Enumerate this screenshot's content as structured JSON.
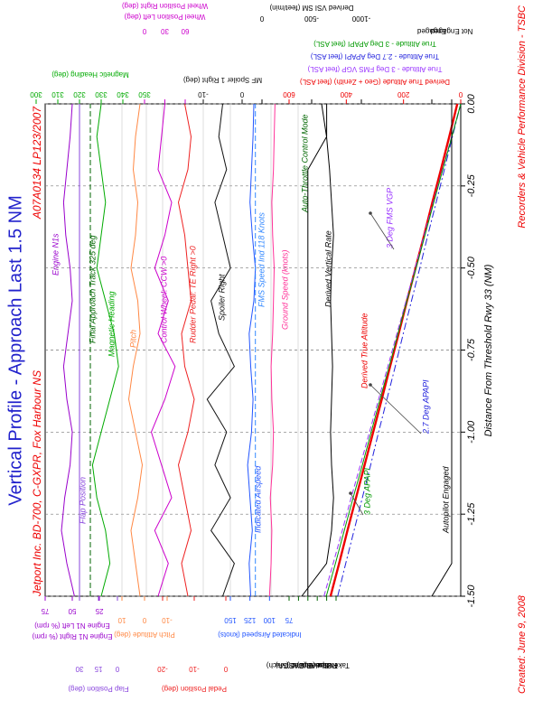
{
  "chart_data": {
    "type": "line",
    "title": "Vertical Profile - Approach Last 1.5 NM",
    "subtitle": "Jetport Inc. BD-700, C-GXPR, Fox Harbour NS",
    "report_id": "A07A0134  LP123/2007",
    "x_label": "Distance From Threshold Rwy 33 (NM)",
    "footer_left": "Created:  June 9, 2008",
    "footer_right": "Recorders & Vehicle Performance Division - TSBC",
    "xlim": [
      -1.5,
      0
    ],
    "xticks": [
      {
        "value": -1.5,
        "label": "-1.50"
      },
      {
        "value": -1.25,
        "label": "-1.25"
      },
      {
        "value": -1,
        "label": "-1.00"
      },
      {
        "value": -0.75,
        "label": "-0.75"
      },
      {
        "value": -0.5,
        "label": "-0.50"
      },
      {
        "value": -0.25,
        "label": "-0.25"
      },
      {
        "value": 0,
        "label": "0.00"
      }
    ],
    "grid": true,
    "x": [
      -1.5,
      -1.4,
      -1.3,
      -1.2,
      -1.1,
      -1.0,
      -0.9,
      -0.8,
      -0.7,
      -0.6,
      -0.5,
      -0.4,
      -0.3,
      -0.2,
      -0.1,
      0
    ],
    "series": [
      {
        "name": "Engine N1s",
        "color": "#9900cc",
        "side": "left",
        "ylim": [
          25,
          75
        ],
        "yticks": [
          25,
          50,
          75
        ],
        "axis_labels": [
          "Engine N1 Left (% rpm)",
          "Engine N1 Right (% rpm)"
        ],
        "values": [
          48,
          55,
          60,
          57,
          52,
          50,
          55,
          58,
          54,
          50,
          52,
          56,
          58,
          55,
          52,
          50
        ]
      },
      {
        "name": "Flap Position",
        "color": "#8844dd",
        "side": "left",
        "ylim": [
          0,
          30
        ],
        "yticks": [
          0,
          15,
          30
        ],
        "axis_labels": [
          "Flap Position (deg)"
        ],
        "values": [
          30,
          30,
          30,
          30,
          30,
          30,
          30,
          30,
          30,
          30,
          30,
          30,
          30,
          30,
          30,
          30
        ]
      },
      {
        "name": "Final Approach Track 325 deg",
        "color": "#006600",
        "dash": true,
        "ylim": [
          350,
          300
        ],
        "values": [
          325,
          325,
          325,
          325,
          325,
          325,
          325,
          325,
          325,
          325,
          325,
          325,
          325,
          325,
          325,
          325
        ]
      },
      {
        "name": "Magnetic Heading",
        "color": "#00aa00",
        "side": "right",
        "ylim": [
          350,
          300
        ],
        "yticks": [
          300,
          310,
          320,
          330,
          340,
          350
        ],
        "axis_labels": [
          "Magnetic Heading (deg)"
        ],
        "values": [
          330,
          334,
          332,
          328,
          326,
          330,
          334,
          338,
          336,
          332,
          328,
          330,
          332,
          330,
          328,
          330
        ]
      },
      {
        "name": "Pitch",
        "color": "#ff8844",
        "side": "left",
        "ylim": [
          -10,
          10
        ],
        "yticks": [
          -10,
          0,
          10
        ],
        "axis_labels": [
          "Pitch Attitude (deg)"
        ],
        "values": [
          2,
          4,
          6,
          3,
          1,
          4,
          7,
          5,
          2,
          3,
          6,
          4,
          3,
          5,
          4,
          2
        ]
      },
      {
        "name": "Control Wheel: CCW >0",
        "color": "#cc00cc",
        "side": "right",
        "ylim": [
          60,
          0
        ],
        "yticks": [
          0,
          30,
          60
        ],
        "axis_labels": [
          "Wheel Position Left (deg)",
          "Wheel Position Right (deg)"
        ],
        "values": [
          20,
          35,
          15,
          40,
          25,
          10,
          30,
          45,
          20,
          35,
          15,
          30,
          40,
          20,
          25,
          30
        ]
      },
      {
        "name": "Rudder Pedal: TE Right >0",
        "color": "#ee2222",
        "side": "left",
        "ylim": [
          0,
          -20
        ],
        "yticks": [
          -20,
          -10,
          0
        ],
        "axis_labels": [
          "Pedal Position (deg)"
        ],
        "values": [
          -12,
          -14,
          -11,
          -13,
          -15,
          -12,
          -10,
          -13,
          -14,
          -11,
          -12,
          -13,
          -15,
          -12,
          -11,
          -13
        ]
      },
      {
        "name": "Spoiler Right",
        "color": "#111111",
        "side": "right",
        "ylim": [
          0,
          -10
        ],
        "yticks": [
          -10,
          0
        ],
        "axis_labels": [
          "MF Spoiler 1 Right (deg)"
        ],
        "values": [
          -5,
          -2,
          -8,
          -3,
          -7,
          -4,
          -9,
          -2,
          -6,
          -8,
          -3,
          -5,
          -7,
          -4,
          -6,
          -5
        ]
      },
      {
        "name": "Indicated Airspeed",
        "color": "#2255ff",
        "side": "left",
        "ylim": [
          75,
          150
        ],
        "yticks": [
          75,
          100,
          125,
          150
        ],
        "axis_labels": [
          "Indicated Airspeed (knots)"
        ],
        "values": [
          124,
          126,
          122,
          125,
          128,
          123,
          121,
          124,
          126,
          120,
          118,
          122,
          125,
          123,
          121,
          120
        ]
      },
      {
        "name": "FMS Speed Ind 118 Knots",
        "color": "#3388ff",
        "dash": true,
        "ylim": [
          75,
          150
        ],
        "values": [
          118,
          118,
          118,
          118,
          118,
          118,
          118,
          118,
          118,
          118,
          118,
          118,
          118,
          118,
          118,
          118
        ]
      },
      {
        "name": "Ground Speed (knots)",
        "color": "#ff3399",
        "ylim": [
          75,
          150
        ],
        "values": [
          100,
          98,
          97,
          99,
          96,
          95,
          97,
          98,
          96,
          95,
          94,
          96,
          97,
          95,
          94,
          93
        ]
      },
      {
        "name": "Auto-Throttle Control Mode",
        "color": "#006600",
        "line_color": "#000000",
        "side": "left",
        "ylim": [
          0,
          5
        ],
        "yticks": [
          {
            "value": 0,
            "label": "Take Off"
          },
          {
            "value": 1,
            "label": "Retard"
          },
          {
            "value": 2,
            "label": "Thrust (FLC)"
          },
          {
            "value": 3,
            "label": "Speed (CAS)"
          },
          {
            "value": 4,
            "label": "o Around (GA)"
          },
          {
            "value": 5,
            "label": "Speed (Mach)"
          }
        ],
        "values": [
          3,
          3,
          3,
          3,
          3,
          3,
          3,
          3,
          3,
          3,
          3,
          3,
          3,
          3,
          1,
          1
        ]
      },
      {
        "name": "Derived Vertical Rate",
        "color": "#000000",
        "side": "right",
        "ylim": [
          -1000,
          0
        ],
        "yticks": [
          -1000,
          -500,
          0
        ],
        "axis_labels": [
          "Derived VSI SM (feet/min)"
        ],
        "values": [
          -400,
          -650,
          -700,
          -720,
          -700,
          -690,
          -700,
          -710,
          -700,
          -690,
          -700,
          -720,
          -700,
          -680,
          -650,
          -600
        ]
      },
      {
        "name": "Derived True Altitude",
        "color": "#ee0000",
        "side": "right",
        "ylim": [
          0,
          600
        ],
        "yticks": [
          0,
          200,
          400,
          600
        ],
        "axis_labels": [
          "Derived True Altitude (Geo + Zenith) (feet ASL)"
        ],
        "values": [
          455,
          425,
          396,
          366,
          336,
          306,
          276,
          247,
          217,
          188,
          158,
          128,
          99,
          69,
          40,
          12
        ]
      },
      {
        "name": "3 Deg FMS VGP",
        "color": "#9933ff",
        "dash": true,
        "ylim": [
          0,
          600
        ],
        "axis_labels": [
          "True Altitude - 3 Deg FMS VGP (feet ASL)"
        ],
        "values": [
          478,
          446,
          414,
          383,
          351,
          319,
          287,
          255,
          223,
          191,
          159,
          128,
          96,
          64,
          32,
          0
        ]
      },
      {
        "name": "2.7 Deg APAPI",
        "color": "#2222dd",
        "dash": true,
        "ylim": [
          0,
          600
        ],
        "axis_labels": [
          "True Altitude - 2.7 Deg APAPI (feet ASL)"
        ],
        "values": [
          430,
          402,
          373,
          344,
          315,
          287,
          258,
          229,
          201,
          172,
          143,
          115,
          86,
          57,
          29,
          0
        ]
      },
      {
        "name": "3 Deg APAPI",
        "color": "#009900",
        "ylim": [
          0,
          600
        ],
        "axis_labels": [
          "True Altitude - 3 Deg APAPI (feet ASL)"
        ],
        "values": [
          470,
          438,
          407,
          376,
          344,
          313,
          282,
          250,
          219,
          188,
          156,
          125,
          94,
          63,
          31,
          0
        ]
      },
      {
        "name": "Autopilot Engaged",
        "color": "#000000",
        "side": "right",
        "ylim": [
          0,
          1
        ],
        "yticks": [
          {
            "value": 0,
            "label": "Not Engaged"
          },
          {
            "value": 1,
            "label": "Engaged"
          }
        ],
        "values": [
          1,
          0,
          0,
          0,
          0,
          0,
          0,
          0,
          0,
          0,
          0,
          0,
          0,
          0,
          0,
          0
        ]
      }
    ]
  }
}
